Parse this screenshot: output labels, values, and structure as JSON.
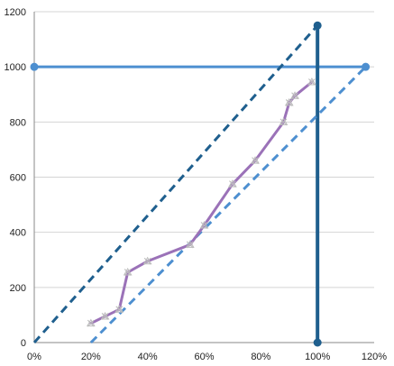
{
  "chart_data": {
    "type": "line",
    "title": "",
    "xlabel": "",
    "ylabel": "",
    "x_unit": "percent",
    "xlim": [
      0,
      120
    ],
    "ylim": [
      0,
      1200
    ],
    "x_ticks": [
      0,
      20,
      40,
      60,
      80,
      100,
      120
    ],
    "x_tick_labels": [
      "0%",
      "20%",
      "40%",
      "60%",
      "80%",
      "100%",
      "120%"
    ],
    "y_ticks": [
      0,
      200,
      400,
      600,
      800,
      1000,
      1200
    ],
    "y_tick_labels": [
      "0",
      "200",
      "400",
      "600",
      "800",
      "1000",
      "1200"
    ],
    "grid": "horizontal",
    "legend": "none",
    "series": [
      {
        "role": "measured",
        "style": "solid",
        "color": "#9b72b8",
        "marker_color": "#bcbcbc",
        "marker": "x",
        "x": [
          20,
          25,
          30,
          33,
          40,
          55,
          60,
          70,
          78,
          88,
          90,
          92,
          98
        ],
        "y": [
          70,
          95,
          120,
          255,
          295,
          355,
          425,
          575,
          660,
          800,
          870,
          895,
          945
        ]
      },
      {
        "role": "diagonal-upper",
        "style": "dashed",
        "color": "#1f5f8e",
        "x": [
          0,
          100
        ],
        "y": [
          0,
          1150
        ]
      },
      {
        "role": "diagonal-lower",
        "style": "dashed",
        "color": "#4d8fd0",
        "x": [
          20,
          117
        ],
        "y": [
          0,
          1000
        ]
      },
      {
        "role": "horizontal-line",
        "style": "solid",
        "color": "#4d8fd0",
        "x": [
          0,
          117
        ],
        "y": [
          1000,
          1000
        ],
        "endpoints": true
      },
      {
        "role": "vertical-line",
        "style": "solid",
        "color": "#1f5f8e",
        "x": [
          100,
          100
        ],
        "y": [
          0,
          1150
        ],
        "endpoints": true
      }
    ]
  }
}
